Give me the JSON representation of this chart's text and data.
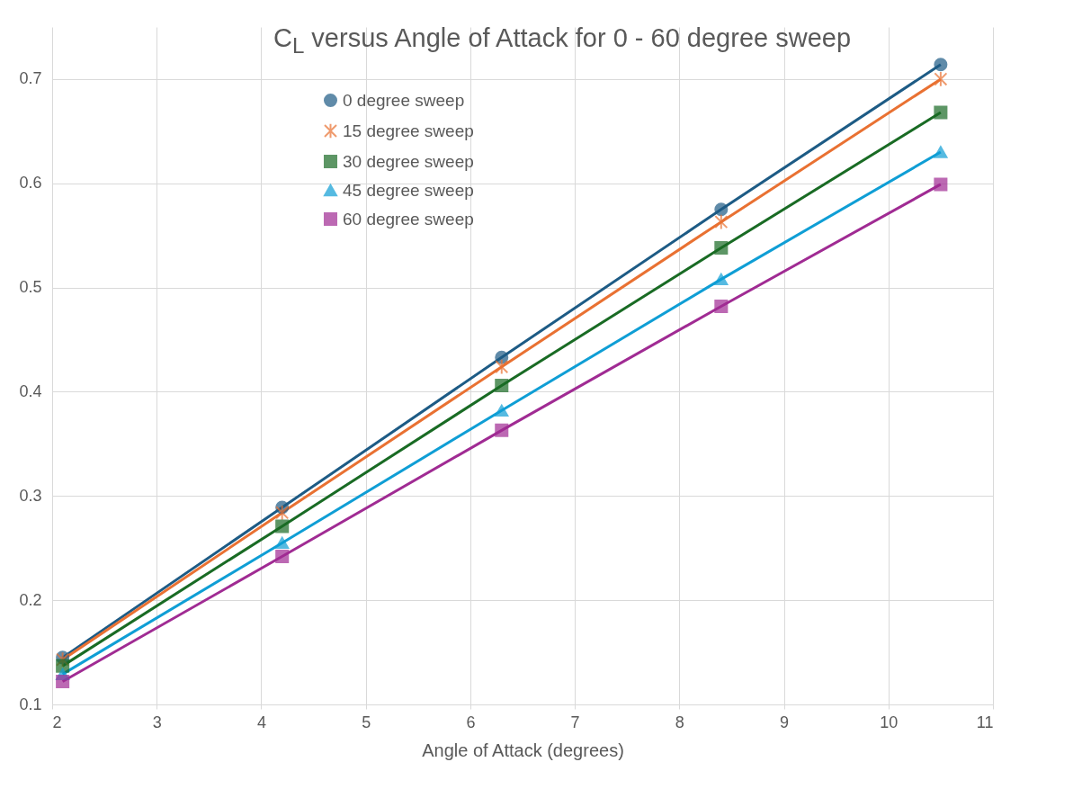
{
  "chart_data": {
    "type": "line",
    "title": "C$_{L}$ versus Angle of Attack for 0 - 60 degree sweep",
    "xlabel": "Angle of Attack (degrees)",
    "x": [
      2.1,
      4.2,
      6.3,
      8.4,
      10.5
    ],
    "series": [
      {
        "name": "0 degree sweep",
        "color": "#1d5b85",
        "marker": "circle",
        "values": [
          0.145,
          0.289,
          0.433,
          0.575,
          0.714
        ]
      },
      {
        "name": "15 degree sweep",
        "color": "#e97132",
        "marker": "cross",
        "values": [
          0.143,
          0.284,
          0.424,
          0.563,
          0.7
        ]
      },
      {
        "name": "30 degree sweep",
        "color": "#196b24",
        "marker": "square",
        "values": [
          0.137,
          0.271,
          0.406,
          0.538,
          0.668
        ]
      },
      {
        "name": "45 degree sweep",
        "color": "#0f9ed5",
        "marker": "triangle",
        "values": [
          0.129,
          0.255,
          0.382,
          0.508,
          0.63
        ]
      },
      {
        "name": "60 degree sweep",
        "color": "#a02b93",
        "marker": "square",
        "values": [
          0.122,
          0.242,
          0.363,
          0.482,
          0.599
        ]
      }
    ],
    "xlim": [
      2,
      11
    ],
    "xticks": [
      2,
      3,
      4,
      5,
      6,
      7,
      8,
      9,
      10,
      11
    ],
    "ylim": [
      0.1,
      0.75
    ],
    "yticks": [
      0.1,
      0.2,
      0.3,
      0.4,
      0.5,
      0.6,
      0.7
    ],
    "grid": true,
    "legend": "top",
    "line_style": "solid"
  }
}
